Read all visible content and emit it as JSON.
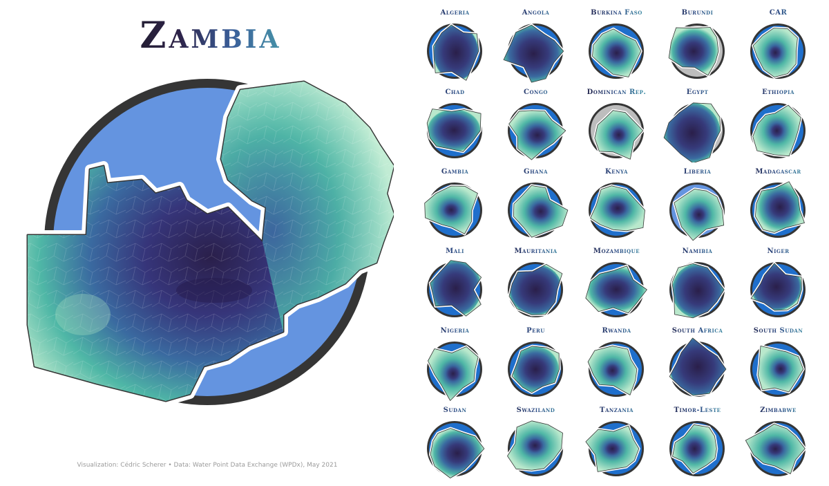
{
  "title": "Zambia",
  "caption": "Visualization: Cédric Scherer • Data: Water Point Data Exchange (WPDx), May 2021",
  "colors": {
    "circle_blue": "#6494e0",
    "circle_ring": "#353535",
    "circle_blue_alt": "#1f6fcc",
    "no_data_gray": "#bdbdbd",
    "dark_purple": "#2e2350",
    "mid_blue": "#3a6aa0",
    "teal": "#4fb7a6",
    "mint": "#b9e8cc"
  },
  "countries": [
    {
      "name": "Algeria"
    },
    {
      "name": "Angola"
    },
    {
      "name": "Burkina Faso"
    },
    {
      "name": "Burundi"
    },
    {
      "name": "CAR"
    },
    {
      "name": "Chad"
    },
    {
      "name": "Congo"
    },
    {
      "name": "Dominican Rep."
    },
    {
      "name": "Egypt"
    },
    {
      "name": "Ethiopia"
    },
    {
      "name": "Gambia"
    },
    {
      "name": "Ghana"
    },
    {
      "name": "Kenya"
    },
    {
      "name": "Liberia"
    },
    {
      "name": "Madagascar"
    },
    {
      "name": "Mali"
    },
    {
      "name": "Mauritania"
    },
    {
      "name": "Mozambique"
    },
    {
      "name": "Namibia"
    },
    {
      "name": "Niger"
    },
    {
      "name": "Nigeria"
    },
    {
      "name": "Peru"
    },
    {
      "name": "Rwanda"
    },
    {
      "name": "South Africa"
    },
    {
      "name": "South Sudan"
    },
    {
      "name": "Sudan"
    },
    {
      "name": "Swaziland"
    },
    {
      "name": "Tanzania"
    },
    {
      "name": "Timor-Leste"
    },
    {
      "name": "Zimbabwe"
    }
  ]
}
